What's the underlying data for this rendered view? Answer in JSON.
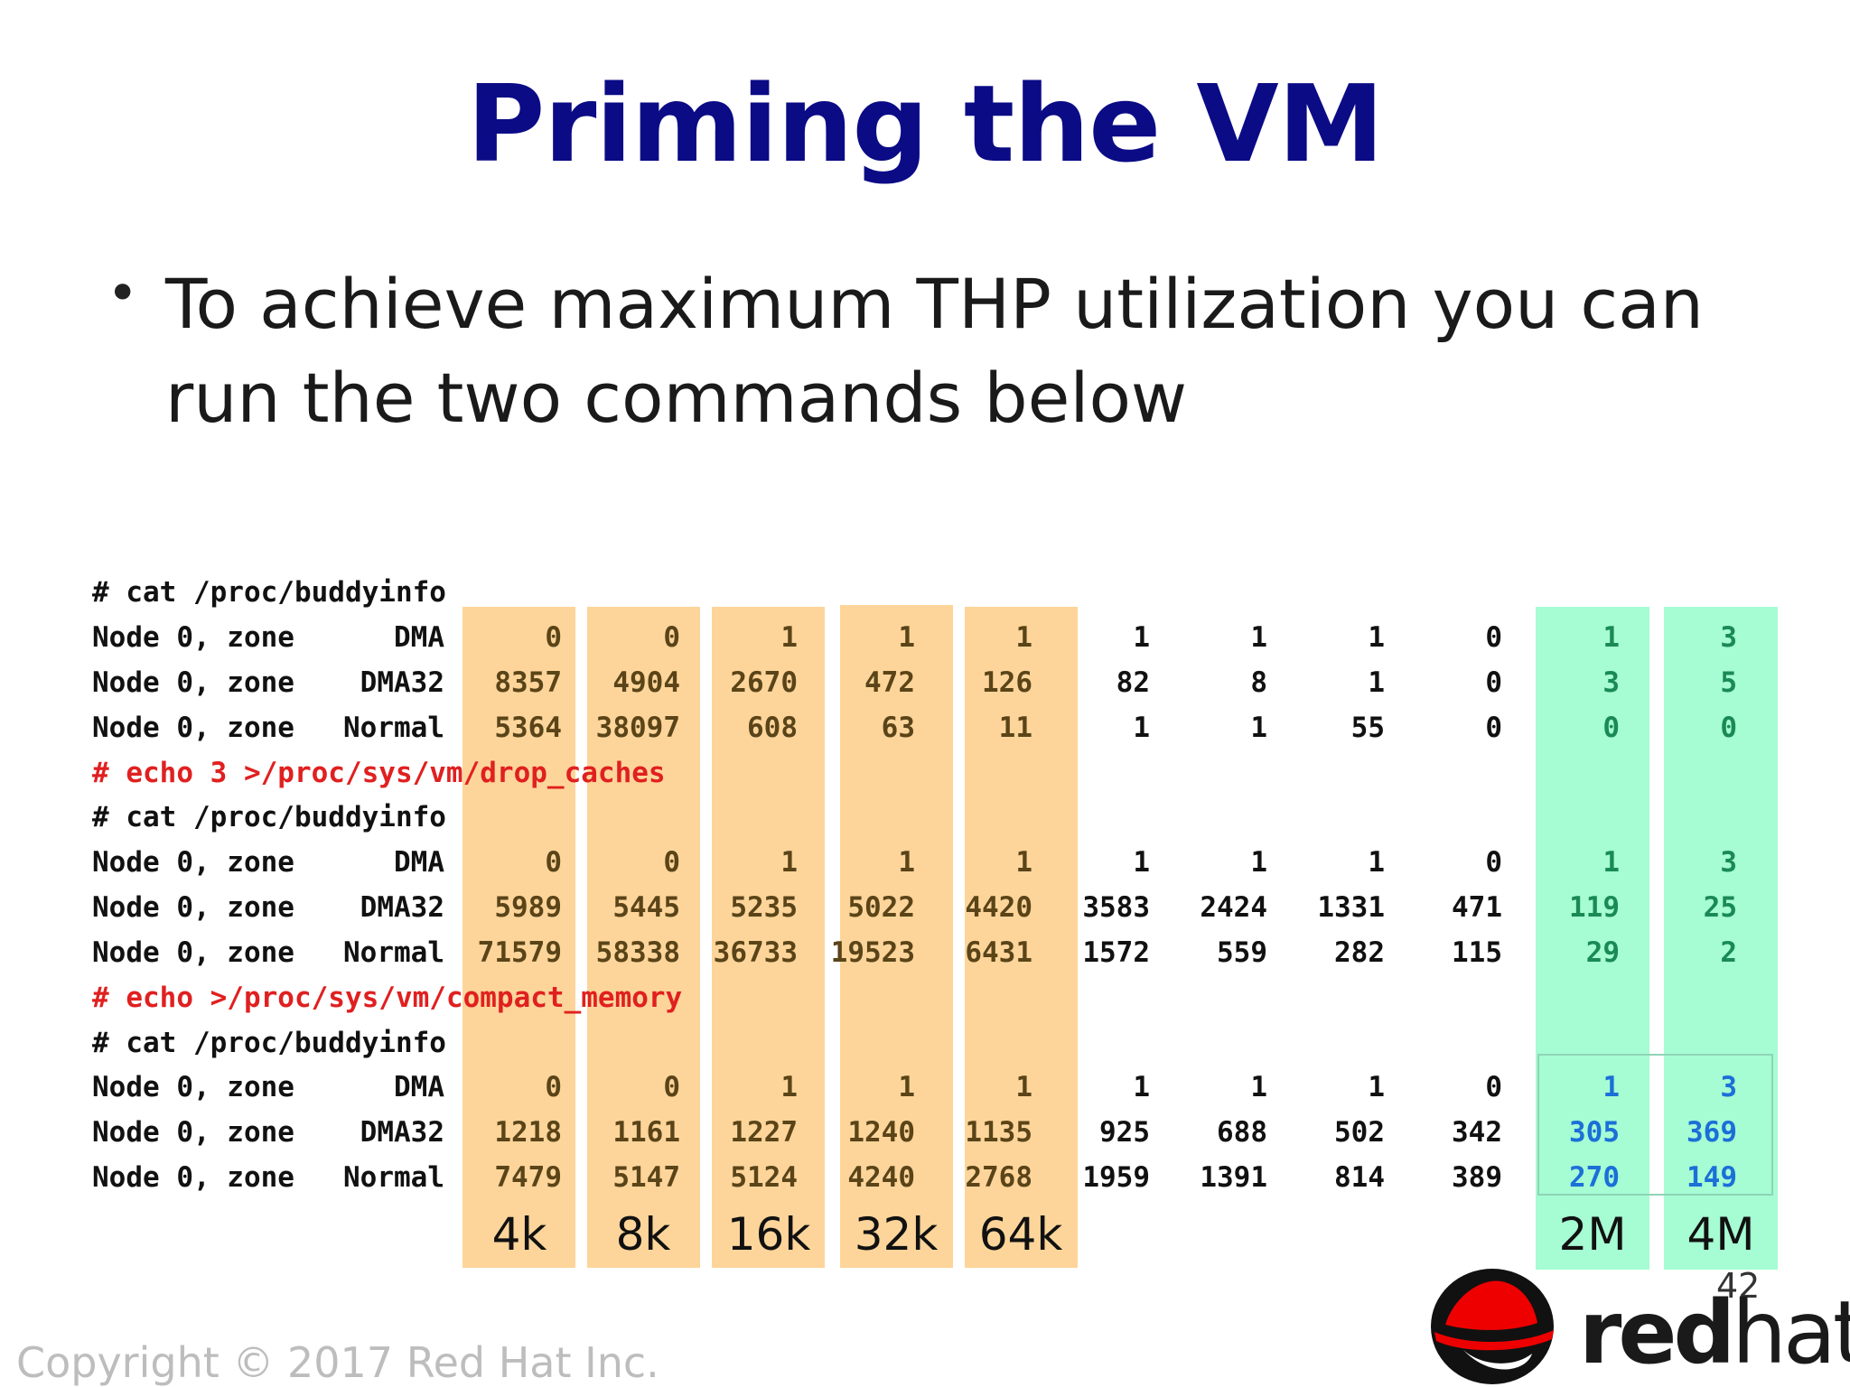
{
  "title": "Priming the VM",
  "bullet": "To achieve maximum THP utilization you can run the two commands below",
  "commands": {
    "cat1": "# cat /proc/buddyinfo",
    "drop": "# echo 3 >/proc/sys/vm/drop_caches",
    "cat2": "# cat /proc/buddyinfo",
    "compact": "# echo >/proc/sys/vm/compact_memory",
    "cat3": "# cat /proc/buddyinfo"
  },
  "blocks": [
    {
      "rows": [
        {
          "prefix": "Node 0, zone",
          "zone": "DMA",
          "values": [
            "0",
            "0",
            "1",
            "1",
            "1",
            "1",
            "1",
            "1",
            "0",
            "1",
            "3"
          ]
        },
        {
          "prefix": "Node 0, zone",
          "zone": "DMA32",
          "values": [
            "8357",
            "4904",
            "2670",
            "472",
            "126",
            "82",
            "8",
            "1",
            "0",
            "3",
            "5"
          ]
        },
        {
          "prefix": "Node 0, zone",
          "zone": "Normal",
          "values": [
            "5364",
            "38097",
            "608",
            "63",
            "11",
            "1",
            "1",
            "55",
            "0",
            "0",
            "0"
          ]
        }
      ]
    },
    {
      "rows": [
        {
          "prefix": "Node 0, zone",
          "zone": "DMA",
          "values": [
            "0",
            "0",
            "1",
            "1",
            "1",
            "1",
            "1",
            "1",
            "0",
            "1",
            "3"
          ]
        },
        {
          "prefix": "Node 0, zone",
          "zone": "DMA32",
          "values": [
            "5989",
            "5445",
            "5235",
            "5022",
            "4420",
            "3583",
            "2424",
            "1331",
            "471",
            "119",
            "25"
          ]
        },
        {
          "prefix": "Node 0, zone",
          "zone": "Normal",
          "values": [
            "71579",
            "58338",
            "36733",
            "19523",
            "6431",
            "1572",
            "559",
            "282",
            "115",
            "29",
            "2"
          ]
        }
      ]
    },
    {
      "rows": [
        {
          "prefix": "Node 0, zone",
          "zone": "DMA",
          "values": [
            "0",
            "0",
            "1",
            "1",
            "1",
            "1",
            "1",
            "1",
            "0",
            "1",
            "3"
          ]
        },
        {
          "prefix": "Node 0, zone",
          "zone": "DMA32",
          "values": [
            "1218",
            "1161",
            "1227",
            "1240",
            "1135",
            "925",
            "688",
            "502",
            "342",
            "305",
            "369"
          ]
        },
        {
          "prefix": "Node 0, zone",
          "zone": "Normal",
          "values": [
            "7479",
            "5147",
            "5124",
            "4240",
            "2768",
            "1959",
            "1391",
            "814",
            "389",
            "270",
            "149"
          ]
        }
      ]
    }
  ],
  "size_labels": [
    "4k",
    "8k",
    "16k",
    "32k",
    "64k",
    "2M",
    "4M"
  ],
  "page_number": "42",
  "copyright": "Copyright © 2017 Red Hat Inc.",
  "logo": {
    "part1": "red",
    "part2": "hat",
    "dot": "."
  },
  "colors": {
    "title": "#0b0b86",
    "command_red": "#e02020",
    "orange_band": "#fdd59a",
    "green_band": "#a6fcd3",
    "highlight_blue": "#1b6fd8"
  }
}
